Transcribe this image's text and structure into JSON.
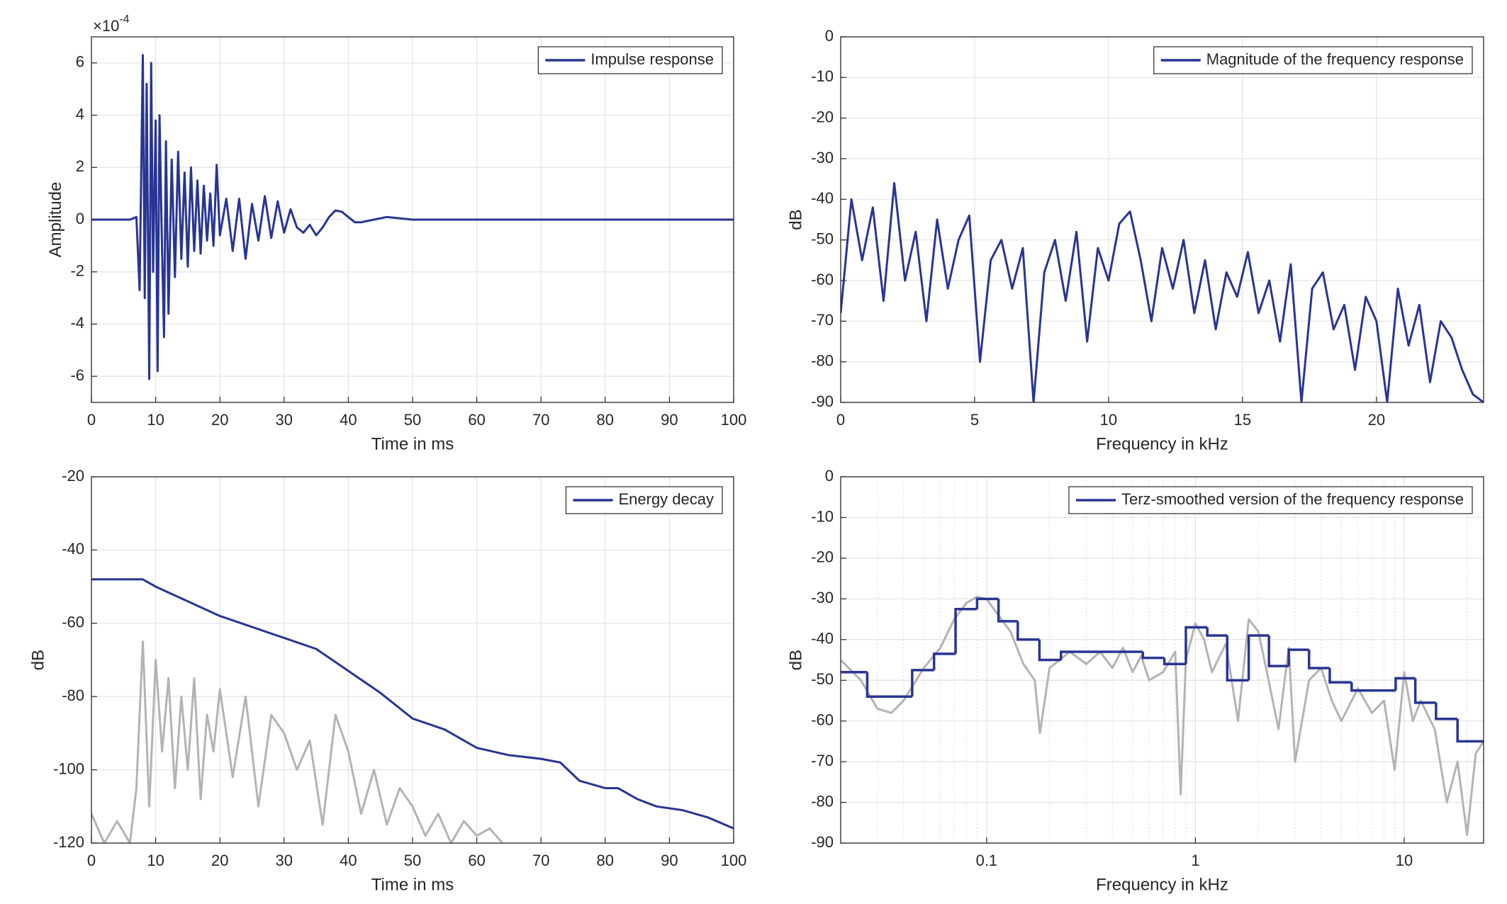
{
  "chart_data": [
    {
      "type": "line",
      "xlabel": "Time in ms",
      "ylabel": "Amplitude",
      "y_exponent_base": "×10",
      "y_exponent_power": "-4",
      "xlim": [
        0,
        100
      ],
      "xticks": [
        0,
        10,
        20,
        30,
        40,
        50,
        60,
        70,
        80,
        90,
        100
      ],
      "ylim": [
        -7,
        7
      ],
      "yticks": [
        -6,
        -4,
        -2,
        0,
        2,
        4,
        6
      ],
      "grid": true,
      "legend": "northeast",
      "series": [
        {
          "name": "Impulse response",
          "color": "#283593",
          "x": [
            0,
            2,
            4,
            6,
            7,
            7.5,
            8,
            8.3,
            8.6,
            9,
            9.3,
            9.6,
            10,
            10.3,
            10.6,
            11,
            11.3,
            11.6,
            12,
            12.5,
            13,
            13.5,
            14,
            14.5,
            15,
            15.5,
            16,
            16.5,
            17,
            17.5,
            18,
            18.5,
            19,
            19.5,
            20,
            21,
            22,
            23,
            24,
            25,
            26,
            27,
            28,
            29,
            30,
            31,
            32,
            33,
            34,
            35,
            36,
            37,
            38,
            39,
            40,
            41,
            42,
            44,
            46,
            48,
            50,
            55,
            60,
            70,
            80,
            90,
            100
          ],
          "values": [
            0,
            0,
            0,
            0,
            0.1,
            -2.7,
            6.3,
            -3,
            5.2,
            -6.1,
            6,
            -2,
            3.8,
            -5.8,
            4,
            -1.2,
            -4.5,
            3,
            -3.6,
            2.3,
            -2.2,
            2.6,
            -1.5,
            1.8,
            -1.8,
            2,
            -1.2,
            1.5,
            -1.3,
            1.3,
            -0.8,
            1.0,
            -1.0,
            2.1,
            -0.6,
            0.8,
            -1.2,
            0.8,
            -1.5,
            0.6,
            -0.8,
            0.9,
            -0.7,
            0.7,
            -0.5,
            0.4,
            -0.3,
            -0.5,
            -0.2,
            -0.6,
            -0.3,
            0.1,
            0.35,
            0.3,
            0.1,
            -0.1,
            -0.1,
            0,
            0.1,
            0.05,
            0,
            0,
            0,
            0,
            0,
            0,
            0
          ]
        }
      ]
    },
    {
      "type": "line",
      "xlabel": "Frequency in kHz",
      "ylabel": "dB",
      "xlim": [
        0,
        24
      ],
      "xticks": [
        0,
        5,
        10,
        15,
        20
      ],
      "ylim": [
        -90,
        0
      ],
      "yticks": [
        -90,
        -80,
        -70,
        -60,
        -50,
        -40,
        -30,
        -20,
        -10,
        0
      ],
      "grid": true,
      "legend": "northeast",
      "series": [
        {
          "name": "Magnitude of the frequency response",
          "color": "#283593",
          "x": [
            0,
            0.4,
            0.8,
            1.2,
            1.6,
            2,
            2.4,
            2.8,
            3.2,
            3.6,
            4,
            4.4,
            4.8,
            5.2,
            5.6,
            6,
            6.4,
            6.8,
            7.2,
            7.6,
            8,
            8.4,
            8.8,
            9.2,
            9.6,
            10,
            10.4,
            10.8,
            11.2,
            11.6,
            12,
            12.4,
            12.8,
            13.2,
            13.6,
            14,
            14.4,
            14.8,
            15.2,
            15.6,
            16,
            16.4,
            16.8,
            17.2,
            17.6,
            18,
            18.4,
            18.8,
            19.2,
            19.6,
            20,
            20.4,
            20.8,
            21.2,
            21.6,
            22,
            22.4,
            22.8,
            23.2,
            23.6,
            24
          ],
          "values": [
            -68,
            -40,
            -55,
            -42,
            -65,
            -36,
            -60,
            -48,
            -70,
            -45,
            -62,
            -50,
            -44,
            -80,
            -55,
            -50,
            -62,
            -52,
            -90,
            -58,
            -50,
            -65,
            -48,
            -75,
            -52,
            -60,
            -46,
            -43,
            -55,
            -70,
            -52,
            -62,
            -50,
            -68,
            -55,
            -72,
            -58,
            -64,
            -53,
            -68,
            -60,
            -75,
            -56,
            -90,
            -62,
            -58,
            -72,
            -66,
            -82,
            -64,
            -70,
            -90,
            -62,
            -76,
            -66,
            -85,
            -70,
            -74,
            -82,
            -88,
            -90
          ]
        }
      ]
    },
    {
      "type": "line",
      "xlabel": "Time in ms",
      "ylabel": "dB",
      "xlim": [
        0,
        100
      ],
      "xticks": [
        0,
        10,
        20,
        30,
        40,
        50,
        60,
        70,
        80,
        90,
        100
      ],
      "ylim": [
        -120,
        -20
      ],
      "yticks": [
        -120,
        -100,
        -80,
        -60,
        -40,
        -20
      ],
      "grid": true,
      "legend": "northeast",
      "series": [
        {
          "color": "#b3b3b3",
          "x": [
            0,
            2,
            4,
            6,
            7,
            8,
            9,
            10,
            11,
            12,
            13,
            14,
            15,
            16,
            17,
            18,
            19,
            20,
            22,
            24,
            26,
            28,
            30,
            32,
            34,
            36,
            38,
            40,
            42,
            44,
            46,
            48,
            50,
            52,
            54,
            56,
            58,
            60,
            62,
            64
          ],
          "values": [
            -112,
            -120,
            -114,
            -120,
            -105,
            -65,
            -110,
            -70,
            -95,
            -75,
            -105,
            -80,
            -100,
            -75,
            -108,
            -85,
            -95,
            -78,
            -102,
            -80,
            -110,
            -85,
            -90,
            -100,
            -92,
            -115,
            -85,
            -95,
            -112,
            -100,
            -115,
            -105,
            -110,
            -118,
            -112,
            -120,
            -114,
            -118,
            -116,
            -120
          ]
        },
        {
          "name": "Energy decay",
          "color": "#283593",
          "x": [
            0,
            8,
            10,
            15,
            20,
            25,
            30,
            35,
            40,
            45,
            50,
            55,
            60,
            65,
            70,
            73,
            76,
            80,
            82,
            85,
            88,
            92,
            96,
            100
          ],
          "values": [
            -48,
            -48,
            -50,
            -54,
            -58,
            -61,
            -64,
            -67,
            -73,
            -79,
            -86,
            -89,
            -94,
            -96,
            -97,
            -98,
            -103,
            -105,
            -105,
            -108,
            -110,
            -111,
            -113,
            -116
          ]
        }
      ]
    },
    {
      "type": "line",
      "xlabel": "Frequency in kHz",
      "ylabel": "dB",
      "xlog": true,
      "minor_grid": true,
      "xlim": [
        0.02,
        24
      ],
      "xticks": [
        0.1,
        1,
        10
      ],
      "ylim": [
        -90,
        0
      ],
      "yticks": [
        -90,
        -80,
        -70,
        -60,
        -50,
        -40,
        -30,
        -20,
        -10,
        0
      ],
      "grid": true,
      "legend": "northeast",
      "series": [
        {
          "color": "#b3b3b3",
          "x": [
            0.02,
            0.025,
            0.03,
            0.035,
            0.04,
            0.05,
            0.06,
            0.07,
            0.08,
            0.09,
            0.1,
            0.11,
            0.13,
            0.15,
            0.17,
            0.18,
            0.2,
            0.25,
            0.3,
            0.35,
            0.4,
            0.45,
            0.5,
            0.55,
            0.6,
            0.7,
            0.8,
            0.85,
            0.9,
            1,
            1.1,
            1.2,
            1.4,
            1.6,
            1.8,
            2,
            2.2,
            2.5,
            2.8,
            3,
            3.5,
            4,
            4.5,
            5,
            6,
            7,
            8,
            9,
            10,
            11,
            12,
            14,
            16,
            18,
            20,
            22,
            24
          ],
          "values": [
            -45,
            -50,
            -57,
            -58,
            -55,
            -47,
            -42,
            -35,
            -31,
            -29.5,
            -30,
            -33,
            -38,
            -46,
            -50,
            -63,
            -47,
            -43,
            -46,
            -43,
            -47,
            -42,
            -48,
            -44,
            -50,
            -48,
            -43,
            -78,
            -45,
            -36,
            -40,
            -48,
            -41,
            -60,
            -35,
            -38,
            -48,
            -62,
            -42,
            -70,
            -50,
            -47,
            -55,
            -60,
            -52,
            -58,
            -55,
            -72,
            -48,
            -60,
            -55,
            -62,
            -80,
            -70,
            -88,
            -68,
            -65
          ]
        },
        {
          "name": "Terz-smoothed version of the frequency response",
          "color": "#283593",
          "drawstyle": "steps-post",
          "x": [
            0.02,
            0.0268,
            0.044,
            0.056,
            0.071,
            0.09,
            0.114,
            0.141,
            0.179,
            0.227,
            0.56,
            0.71,
            0.9,
            1.14,
            1.42,
            1.8,
            2.25,
            2.8,
            3.5,
            4.4,
            5.6,
            9.1,
            11.3,
            14.2,
            18,
            24
          ],
          "values": [
            -48,
            -54,
            -47.5,
            -43.5,
            -32.5,
            -30,
            -35.5,
            -40,
            -45,
            -43,
            -44.5,
            -46,
            -37,
            -39,
            -50,
            -39,
            -46.5,
            -42.5,
            -47,
            -50.5,
            -52.5,
            -49.5,
            -55.5,
            -59.5,
            -65,
            -65
          ]
        }
      ]
    }
  ]
}
